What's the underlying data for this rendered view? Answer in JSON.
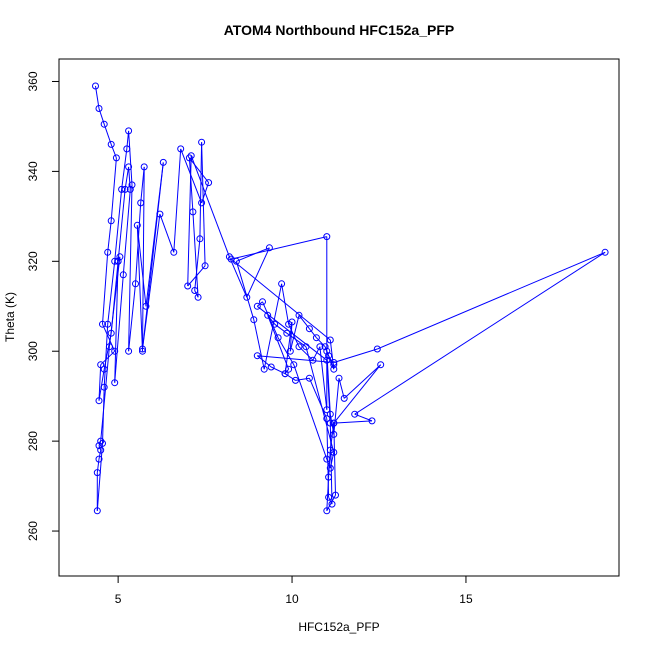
{
  "chart_data": {
    "type": "line",
    "title": "ATOM4 Northbound HFC152a_PFP",
    "xlabel": "HFC152a_PFP",
    "ylabel": "Theta (K)",
    "xlim": [
      3.3,
      19.4
    ],
    "ylim": [
      250,
      365
    ],
    "xticks": [
      5,
      10,
      15
    ],
    "yticks": [
      260,
      280,
      300,
      320,
      340,
      360
    ],
    "grid": false,
    "legend": "none",
    "line_color": "#0000ff",
    "marker": "open-circle",
    "series": [
      {
        "points": [
          [
            4.35,
            359
          ],
          [
            4.45,
            354
          ],
          [
            4.6,
            350.5
          ],
          [
            4.8,
            346
          ],
          [
            4.95,
            343
          ],
          [
            4.8,
            329
          ],
          [
            4.7,
            322
          ],
          [
            4.55,
            306
          ],
          [
            4.9,
            300
          ],
          [
            4.5,
            297
          ],
          [
            4.45,
            289
          ],
          [
            4.6,
            296
          ],
          [
            4.8,
            304
          ],
          [
            5.0,
            320
          ],
          [
            5.2,
            336
          ],
          [
            5.3,
            341
          ],
          [
            5.35,
            336
          ],
          [
            5.15,
            317
          ],
          [
            4.9,
            293
          ],
          [
            5.0,
            320
          ],
          [
            5.05,
            321
          ],
          [
            4.75,
            301
          ],
          [
            4.5,
            280
          ],
          [
            4.45,
            279
          ],
          [
            4.5,
            278
          ],
          [
            4.45,
            276
          ],
          [
            4.4,
            273
          ],
          [
            4.4,
            264.5
          ],
          [
            4.55,
            279.5
          ],
          [
            4.6,
            292
          ],
          [
            4.7,
            306
          ],
          [
            4.9,
            320
          ],
          [
            5.1,
            336
          ],
          [
            5.25,
            345
          ],
          [
            5.3,
            349
          ],
          [
            5.4,
            337
          ],
          [
            5.3,
            300
          ],
          [
            5.5,
            315
          ],
          [
            5.65,
            333
          ],
          [
            5.75,
            341
          ],
          [
            5.7,
            300
          ],
          [
            5.55,
            328
          ],
          [
            5.8,
            310
          ],
          [
            6.3,
            342
          ],
          [
            5.7,
            300.5
          ],
          [
            6.2,
            330.5
          ],
          [
            6.6,
            322
          ],
          [
            6.8,
            345
          ],
          [
            7.4,
            333
          ],
          [
            7.6,
            337.5
          ],
          [
            7.05,
            343
          ],
          [
            7.15,
            331
          ],
          [
            7.3,
            312
          ],
          [
            7.2,
            313.5
          ],
          [
            7.35,
            325
          ],
          [
            7.4,
            346.5
          ],
          [
            7.5,
            319
          ],
          [
            7.0,
            314.5
          ],
          [
            7.1,
            343.5
          ],
          [
            8.2,
            321
          ],
          [
            8.7,
            312
          ],
          [
            9.35,
            323
          ],
          [
            8.4,
            320
          ],
          [
            8.9,
            307
          ],
          [
            9.2,
            296
          ],
          [
            9.7,
            315
          ],
          [
            9.9,
            306
          ],
          [
            10.2,
            301
          ],
          [
            10.6,
            298
          ],
          [
            10.8,
            301
          ],
          [
            11.0,
            287
          ],
          [
            11.0,
            325.5
          ],
          [
            8.25,
            320.5
          ],
          [
            11.1,
            302.5
          ],
          [
            11.2,
            296
          ],
          [
            11.0,
            300
          ],
          [
            11.1,
            286
          ],
          [
            11.2,
            281.5
          ],
          [
            11.35,
            294
          ],
          [
            11.5,
            289.5
          ],
          [
            12.55,
            297
          ],
          [
            11.2,
            284
          ],
          [
            11.25,
            268
          ],
          [
            11.0,
            264.5
          ],
          [
            11.05,
            272
          ],
          [
            11.1,
            278
          ],
          [
            11.2,
            284
          ],
          [
            12.3,
            284.5
          ],
          [
            11.8,
            286
          ],
          [
            19.0,
            322
          ],
          [
            12.45,
            300.5
          ],
          [
            11.2,
            297.5
          ],
          [
            9.0,
            299
          ],
          [
            9.4,
            296.5
          ],
          [
            9.8,
            295
          ],
          [
            10.1,
            293.5
          ],
          [
            10.5,
            294
          ],
          [
            11.0,
            285
          ],
          [
            11.05,
            267.5
          ],
          [
            11.15,
            266
          ],
          [
            11.1,
            284
          ],
          [
            11.0,
            298
          ],
          [
            9.0,
            310
          ],
          [
            9.15,
            311
          ],
          [
            9.6,
            303
          ],
          [
            10.05,
            297
          ],
          [
            11.0,
            276
          ],
          [
            11.1,
            274
          ],
          [
            11.2,
            277.5
          ],
          [
            10.4,
            301
          ],
          [
            9.85,
            304
          ],
          [
            9.5,
            306
          ],
          [
            9.3,
            308
          ],
          [
            9.9,
            296
          ],
          [
            9.8,
            295
          ],
          [
            10.0,
            306.5
          ],
          [
            9.95,
            300
          ],
          [
            10.2,
            308
          ],
          [
            10.5,
            305
          ],
          [
            10.7,
            303
          ],
          [
            10.95,
            301
          ],
          [
            11.05,
            299
          ],
          [
            11.2,
            297
          ]
        ]
      }
    ]
  }
}
